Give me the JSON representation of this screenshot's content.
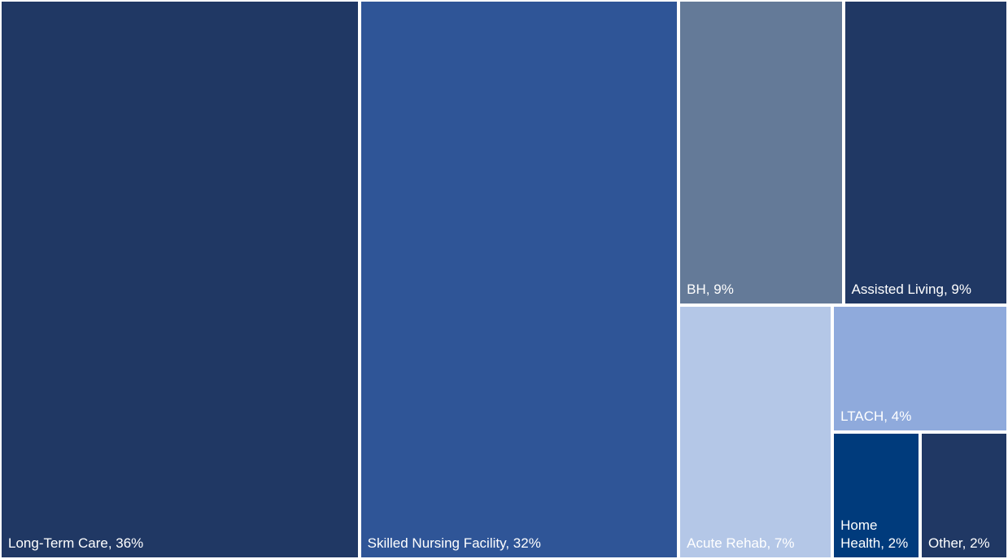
{
  "chart_data": {
    "type": "treemap",
    "labels": [
      "Long-Term Care, 36%",
      "Skilled Nursing Facility, 32%",
      "BH, 9%",
      "Assisted Living, 9%",
      "Acute Rehab, 7%",
      "LTACH, 4%",
      "Home Health, 2%",
      "Other, 2%"
    ],
    "values": [
      36,
      32,
      9,
      9,
      7,
      4,
      2,
      2
    ],
    "colors": [
      "#203864",
      "#2f5597",
      "#647a98",
      "#203864",
      "#b4c7e7",
      "#8faadc",
      "#003b7c",
      "#203864"
    ]
  }
}
